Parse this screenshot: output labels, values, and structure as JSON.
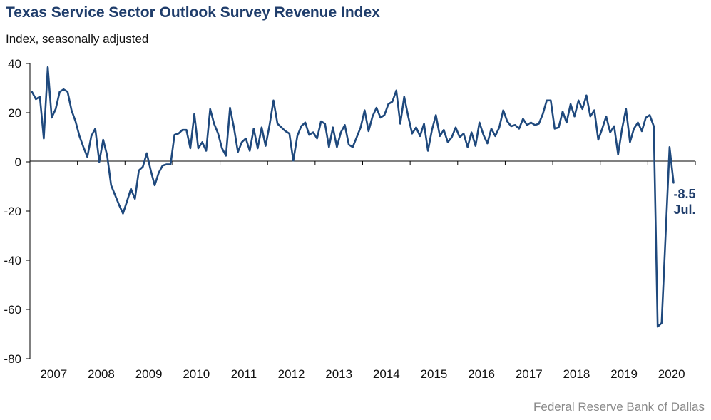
{
  "header": {
    "title": "Texas Service Sector Outlook Survey Revenue Index",
    "subtitle": "Index, seasonally adjusted"
  },
  "footer": {
    "source": "Federal Reserve Bank of Dallas"
  },
  "colors": {
    "line": "#1f497d",
    "title": "#1f3d6b",
    "axis": "#000000",
    "source": "#8a8a8a"
  },
  "chart_data": {
    "type": "line",
    "title": "Texas Service Sector Outlook Survey Revenue Index",
    "ylabel": "Index, seasonally adjusted",
    "xlabel": "",
    "ylim": [
      -80,
      40
    ],
    "yticks": [
      40,
      20,
      0,
      -20,
      -40,
      -60,
      -80
    ],
    "ytick_labels": [
      "40",
      "20",
      "0",
      "-20",
      "-40",
      "-60",
      "-80"
    ],
    "xticks": [
      "2007",
      "2008",
      "2009",
      "2010",
      "2011",
      "2012",
      "2013",
      "2014",
      "2015",
      "2016",
      "2017",
      "2018",
      "2019",
      "2020"
    ],
    "x_start": "2007-01",
    "x_end": "2020-07",
    "frequency": "monthly",
    "grid": false,
    "legend": "none",
    "end_annotation": {
      "value": "-8.5",
      "label": "Jul."
    },
    "series": [
      {
        "values": [
          28.5,
          25.5,
          26.5,
          9.5,
          38.5,
          18,
          21.5,
          28.5,
          29.5,
          28.5,
          21,
          16.5,
          10.5,
          6,
          2,
          10.5,
          13.5,
          0,
          9,
          2.5,
          -9.5,
          -13.5,
          -17.5,
          -21,
          -16,
          -11,
          -15,
          -3.5,
          -2,
          3.5,
          -3.5,
          -9.5,
          -4.5,
          -1.5,
          -1,
          -1,
          11,
          11.5,
          13,
          13,
          5.5,
          19.5,
          5.5,
          8,
          4.5,
          21.5,
          15.5,
          11.5,
          5.5,
          2.5,
          22,
          14,
          4,
          8,
          9.5,
          4.5,
          13.5,
          5.5,
          14,
          6.5,
          15,
          25,
          15.5,
          14,
          12.5,
          11.5,
          0.5,
          10.5,
          14.5,
          16,
          11,
          12,
          9.5,
          16.5,
          15.5,
          6,
          14,
          6,
          12,
          15,
          7,
          6,
          10,
          14,
          21,
          12.5,
          18.5,
          22,
          18,
          19,
          23.5,
          24.5,
          29,
          15.5,
          26.5,
          18.5,
          11.5,
          14,
          10.5,
          15.5,
          4.5,
          13,
          19,
          10.5,
          13,
          8,
          10,
          14,
          10,
          11.5,
          6,
          12,
          6.5,
          16,
          11,
          7.5,
          13.5,
          10.5,
          14,
          21,
          16.5,
          14.5,
          15,
          13.5,
          17.5,
          15,
          16,
          15,
          15.5,
          19.5,
          25,
          25,
          13.5,
          14,
          20.5,
          16,
          23.5,
          18.5,
          25,
          21.5,
          27,
          18.5,
          21,
          9,
          13.5,
          18.5,
          12,
          14.5,
          3,
          13.5,
          21.5,
          8,
          13.5,
          16,
          12.5,
          18,
          19,
          14.5,
          -67,
          -65.5,
          -30,
          6,
          -8.5
        ]
      }
    ]
  }
}
